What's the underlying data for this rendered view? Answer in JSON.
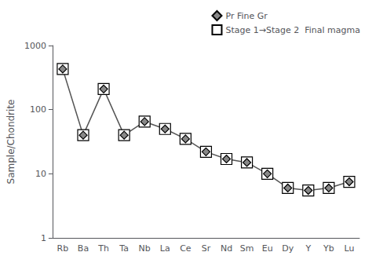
{
  "chart_data": {
    "type": "line",
    "color": "#555555",
    "categories": [
      "Rb",
      "Ba",
      "Th",
      "Ta",
      "Nb",
      "La",
      "Ce",
      "Sr",
      "Nd",
      "Sm",
      "Eu",
      "Dy",
      "Y",
      "Yb",
      "Lu"
    ],
    "series": [
      {
        "name": "Pr Fine Gr",
        "type": "scatter",
        "marker": "diamond",
        "color": "#888888",
        "values": [
          430,
          40,
          210,
          40,
          65,
          50,
          35,
          22,
          17,
          15,
          10,
          6,
          5.5,
          6,
          7.5
        ]
      },
      {
        "name": "Stage 1→Stage 2  Final magma",
        "type": "scatter",
        "marker": "square",
        "color": "#ffffff",
        "values": [
          430,
          40,
          210,
          40,
          65,
          50,
          35,
          22,
          17,
          15,
          10,
          6,
          5.5,
          6,
          7.5
        ]
      }
    ],
    "ylabel": "Sample/Chondrite",
    "log": "y",
    "ylim": [
      1,
      1000
    ],
    "yticks": [
      1,
      10,
      100,
      1000
    ],
    "legend": "upper right",
    "grid": false
  }
}
